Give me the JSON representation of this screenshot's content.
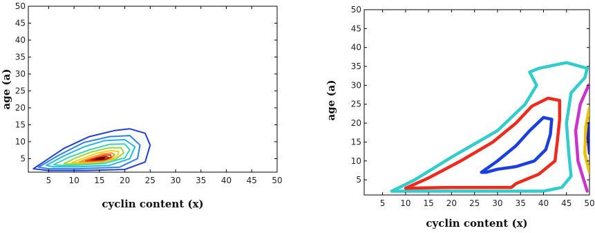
{
  "chart_data": [
    {
      "type": "contour",
      "panel": "left",
      "xlabel": "cyclin content (x)",
      "ylabel": "age (a)",
      "xlim": [
        1,
        50
      ],
      "ylim": [
        1,
        50
      ],
      "xticks": [
        "5",
        "10",
        "15",
        "20",
        "25",
        "30",
        "35",
        "40",
        "45",
        "50"
      ],
      "yticks": [
        "5",
        "10",
        "15",
        "20",
        "25",
        "30",
        "35",
        "40",
        "45",
        "50"
      ],
      "contours": [
        {
          "color": "#1f3fd0",
          "points": [
            [
              2,
              2
            ],
            [
              4,
              4
            ],
            [
              8,
              8
            ],
            [
              13,
              11.5
            ],
            [
              18,
              13.3
            ],
            [
              21,
              13.8
            ],
            [
              24,
              12.5
            ],
            [
              25,
              9
            ],
            [
              24,
              4
            ],
            [
              20,
              1.8
            ],
            [
              12,
              1.5
            ],
            [
              5,
              1.5
            ],
            [
              2,
              2
            ]
          ]
        },
        {
          "color": "#2f7fe8",
          "points": [
            [
              3,
              2.5
            ],
            [
              7,
              6
            ],
            [
              12,
              9.8
            ],
            [
              17,
              11.5
            ],
            [
              21,
              11.8
            ],
            [
              23,
              9
            ],
            [
              22.5,
              5
            ],
            [
              19,
              2.5
            ],
            [
              11,
              2
            ],
            [
              5,
              2
            ],
            [
              3,
              2.5
            ]
          ]
        },
        {
          "color": "#21b7e8",
          "points": [
            [
              4.5,
              3
            ],
            [
              8,
              5.8
            ],
            [
              12,
              8.5
            ],
            [
              16,
              10.3
            ],
            [
              20,
              10.6
            ],
            [
              22,
              8.5
            ],
            [
              21,
              5
            ],
            [
              17,
              3
            ],
            [
              11,
              2.6
            ],
            [
              6,
              2.6
            ],
            [
              4.5,
              3
            ]
          ]
        },
        {
          "color": "#3ad3b0",
          "points": [
            [
              6,
              3.2
            ],
            [
              9,
              5.4
            ],
            [
              13,
              7.6
            ],
            [
              17,
              9.2
            ],
            [
              20,
              9.3
            ],
            [
              21,
              7.6
            ],
            [
              20,
              5.2
            ],
            [
              16,
              3.6
            ],
            [
              11,
              3.1
            ],
            [
              7.5,
              3
            ],
            [
              6,
              3.2
            ]
          ]
        },
        {
          "color": "#9bd83a",
          "points": [
            [
              8,
              3.5
            ],
            [
              10.5,
              5.3
            ],
            [
              13.5,
              7
            ],
            [
              17,
              8.2
            ],
            [
              19.3,
              8.2
            ],
            [
              19.8,
              6.7
            ],
            [
              18.4,
              5
            ],
            [
              15.5,
              3.9
            ],
            [
              11.5,
              3.5
            ],
            [
              9,
              3.4
            ],
            [
              8,
              3.5
            ]
          ]
        },
        {
          "color": "#f2d21c",
          "points": [
            [
              9.5,
              3.8
            ],
            [
              12,
              5.2
            ],
            [
              14.5,
              6.6
            ],
            [
              17.3,
              7.4
            ],
            [
              18.8,
              7.1
            ],
            [
              18.6,
              5.8
            ],
            [
              17,
              4.6
            ],
            [
              14.5,
              4
            ],
            [
              11.5,
              3.8
            ],
            [
              9.5,
              3.8
            ]
          ]
        },
        {
          "color": "#f79a18",
          "points": [
            [
              11,
              4
            ],
            [
              13.5,
              5.4
            ],
            [
              15.6,
              6.4
            ],
            [
              17.4,
              6.7
            ],
            [
              18,
              6.1
            ],
            [
              17.2,
              5
            ],
            [
              15.5,
              4.3
            ],
            [
              13,
              4.1
            ],
            [
              11,
              4
            ]
          ]
        },
        {
          "color": "#ee3a12",
          "points": [
            [
              12.3,
              4.3
            ],
            [
              14.3,
              5.3
            ],
            [
              16,
              6
            ],
            [
              17.2,
              6.1
            ],
            [
              17.3,
              5.4
            ],
            [
              16.2,
              4.7
            ],
            [
              14.3,
              4.4
            ],
            [
              12.3,
              4.3
            ]
          ]
        },
        {
          "color": "#b3140e",
          "points": [
            [
              13.4,
              4.6
            ],
            [
              15,
              5.2
            ],
            [
              16.3,
              5.6
            ],
            [
              16.8,
              5.3
            ],
            [
              16.1,
              4.8
            ],
            [
              14.6,
              4.6
            ],
            [
              13.4,
              4.6
            ]
          ]
        },
        {
          "color": "#5a0a06",
          "points": [
            [
              14.3,
              4.85
            ],
            [
              15.4,
              5.2
            ],
            [
              16.1,
              5.3
            ],
            [
              15.7,
              4.95
            ],
            [
              14.3,
              4.85
            ]
          ]
        }
      ]
    },
    {
      "type": "contour",
      "panel": "right",
      "xlabel": "cyclin content (x)",
      "ylabel": "age (a)",
      "xlim": [
        1,
        50
      ],
      "ylim": [
        1,
        50
      ],
      "xticks": [
        "5",
        "10",
        "15",
        "20",
        "25",
        "30",
        "35",
        "40",
        "45",
        "50"
      ],
      "yticks": [
        "5",
        "10",
        "15",
        "20",
        "25",
        "30",
        "35",
        "40",
        "45",
        "50"
      ],
      "contours": [
        {
          "color": "#33cccc",
          "points": [
            [
              7,
              2
            ],
            [
              12,
              5
            ],
            [
              20,
              11
            ],
            [
              30,
              18
            ],
            [
              36,
              25
            ],
            [
              38.5,
              30
            ],
            [
              37,
              33.5
            ],
            [
              39,
              34.5
            ],
            [
              45,
              36
            ],
            [
              49.5,
              34.5
            ],
            [
              49,
              32
            ],
            [
              46,
              28
            ],
            [
              45,
              20
            ],
            [
              45.5,
              12
            ],
            [
              46,
              6
            ],
            [
              44,
              3
            ],
            [
              40,
              2
            ],
            [
              34,
              2
            ],
            [
              20,
              2
            ],
            [
              7,
              2
            ]
          ]
        },
        {
          "color": "#ee2a1c",
          "points": [
            [
              10,
              2.8
            ],
            [
              15,
              5.5
            ],
            [
              22,
              10
            ],
            [
              29,
              15
            ],
            [
              34,
              20
            ],
            [
              37.5,
              24.5
            ],
            [
              41,
              26.6
            ],
            [
              43.5,
              26
            ],
            [
              43.5,
              21
            ],
            [
              43,
              15
            ],
            [
              42.5,
              10
            ],
            [
              39,
              6.5
            ],
            [
              34,
              4
            ],
            [
              33,
              3
            ],
            [
              20,
              3
            ],
            [
              10,
              2.8
            ]
          ]
        },
        {
          "color": "#1a3fe0",
          "points": [
            [
              26.5,
              7
            ],
            [
              30,
              10
            ],
            [
              34,
              14
            ],
            [
              37,
              18
            ],
            [
              40,
              21.5
            ],
            [
              41.8,
              21
            ],
            [
              41.5,
              17
            ],
            [
              40.5,
              13
            ],
            [
              38,
              10
            ],
            [
              34,
              8.5
            ],
            [
              30,
              7.8
            ],
            [
              27.5,
              7
            ],
            [
              26.5,
              7
            ]
          ]
        },
        {
          "color": "#cc33cc",
          "points": [
            [
              49.8,
              30
            ],
            [
              48,
              25
            ],
            [
              47,
              18
            ],
            [
              47.5,
              10
            ],
            [
              48.5,
              6
            ],
            [
              49.5,
              2
            ]
          ]
        },
        {
          "color": "#e8c000",
          "points": [
            [
              50,
              24
            ],
            [
              49.2,
              19
            ],
            [
              49,
              12
            ],
            [
              50,
              7
            ]
          ]
        },
        {
          "color": "#2020c0",
          "points": [
            [
              50,
              20
            ],
            [
              49.7,
              16
            ],
            [
              50,
              12
            ]
          ]
        }
      ]
    }
  ]
}
